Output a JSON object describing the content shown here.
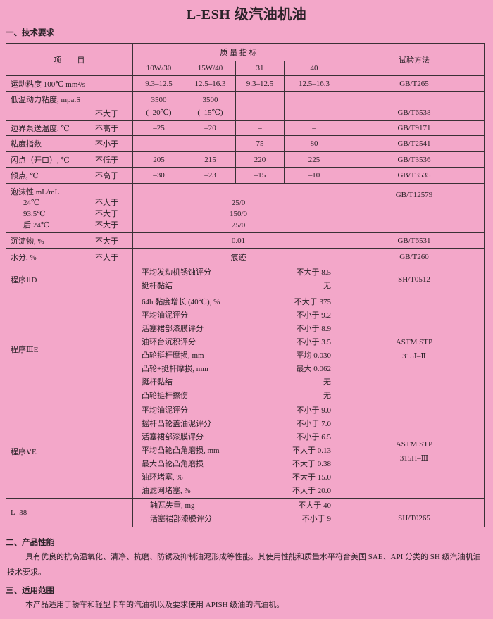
{
  "title": "L-ESH 级汽油机油",
  "sections": {
    "s1": "一、技术要求",
    "s2": "二、产品性能",
    "s3": "三、适用范围"
  },
  "table": {
    "header": {
      "item": "项　　目",
      "quality": "质 量 指 标",
      "method": "试验方法",
      "grades": [
        "10W/30",
        "15W/40",
        "31",
        "40"
      ]
    },
    "rows": [
      {
        "name": "运动粘度 100℃ mm²/s",
        "limit": "",
        "values": [
          "9.3–12.5",
          "12.5–16.3",
          "9.3–12.5",
          "12.5–16.3"
        ],
        "method": "GB/T265"
      },
      {
        "name": "低温动力粘度, mpa.S",
        "limit": "不大于",
        "values": [
          "3500\n(–20℃)",
          "3500\n(–15℃)",
          "–",
          "–"
        ],
        "method": "GB/T6538"
      },
      {
        "name": "边界泵送温度, ℃",
        "limit": "不高于",
        "values": [
          "–25",
          "–20",
          "–",
          "–"
        ],
        "method": "GB/T9171"
      },
      {
        "name": "粘度指数",
        "limit": "不小于",
        "values": [
          "–",
          "–",
          "75",
          "80"
        ],
        "method": "GB/T2541"
      },
      {
        "name": "闪点（开口）, ℃",
        "limit": "不低于",
        "values": [
          "205",
          "215",
          "220",
          "225"
        ],
        "method": "GB/T3536"
      },
      {
        "name": "倾点, ℃",
        "limit": "不高于",
        "values": [
          "–30",
          "–23",
          "–15",
          "–10"
        ],
        "method": "GB/T3535"
      }
    ],
    "foam": {
      "name": "泡沫性 mL/mL",
      "temps": [
        "24℃",
        "93.5℃",
        "后 24℃"
      ],
      "limit": "不大于",
      "values": [
        "25/0",
        "150/0",
        "25/0"
      ],
      "method": "GB/T12579"
    },
    "sediment": {
      "name": "沉淀物, %",
      "limit": "不大于",
      "value": "0.01",
      "method": "GB/T6531"
    },
    "water": {
      "name": "水分, %",
      "limit": "不大于",
      "value": "痕迹",
      "method": "GB/T260"
    },
    "procedures": [
      {
        "name": "程序ⅡD",
        "method": "SH/T0512",
        "items": [
          [
            "平均发动机锈蚀评分",
            "不大于 8.5"
          ],
          [
            "挺杆黏结",
            "无"
          ]
        ]
      },
      {
        "name": "程序ⅢE",
        "method": "ASTM STP\n315Ⅰ–Ⅱ",
        "items": [
          [
            "64h 黏度增长 (40℃), %",
            "不大于 375"
          ],
          [
            "平均油泥评分",
            "不小于 9.2"
          ],
          [
            "活塞裙部漆膜评分",
            "不小于 8.9"
          ],
          [
            "油环台沉积评分",
            "不小于 3.5"
          ],
          [
            "凸轮挺杆摩损, mm",
            "平均 0.030"
          ],
          [
            "凸轮+挺杆摩损, mm",
            "最大 0.062"
          ],
          [
            "挺杆黏结",
            "无"
          ],
          [
            "凸轮挺杆擦伤",
            "无"
          ]
        ]
      },
      {
        "name": "程序ⅤE",
        "method": "ASTM STP\n315H–Ⅲ",
        "items": [
          [
            "平均油泥评分",
            "不小于 9.0"
          ],
          [
            "摇杆凸轮盖油泥评分",
            "不小于 7.0"
          ],
          [
            "活塞裙部漆膜评分",
            "不小于 6.5"
          ],
          [
            "平均凸轮凸角磨损, mm",
            "不大于 0.13"
          ],
          [
            "最大凸轮凸角磨损",
            "不大于 0.38"
          ],
          [
            "油环堵塞, %",
            "不大于 15.0"
          ],
          [
            "油滤网堵塞, %",
            "不大于 20.0"
          ]
        ]
      },
      {
        "name": "L–38",
        "method": "SH/T0265",
        "items": [
          [
            "轴瓦失重, mg",
            "不大于 40"
          ],
          [
            "活塞裙部漆膜评分",
            "不小于 9"
          ]
        ]
      }
    ]
  },
  "performance": "具有优良的抗高温氧化、清净、抗磨、防锈及抑制油泥形成等性能。其使用性能和质量水平符合美国 SAE、API 分类的 SH 级汽油机油技术要求。",
  "scope": "本产品适用于轿车和轻型卡车的汽油机以及要求使用 APISH 级油的汽油机。"
}
